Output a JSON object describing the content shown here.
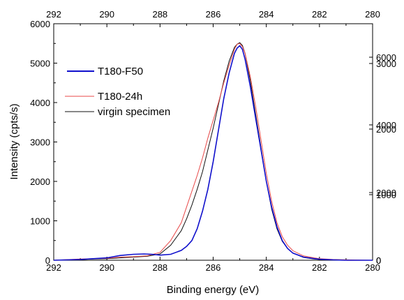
{
  "chart_data": {
    "type": "line",
    "xlabel": "Binding energy (eV)",
    "ylabel": "Intensity (cpts/s)",
    "xlim": [
      292,
      280
    ],
    "ylim": [
      0,
      6000
    ],
    "x_ticks": [
      292,
      290,
      288,
      286,
      284,
      282,
      280
    ],
    "y_ticks": [
      0,
      1000,
      2000,
      3000,
      4000,
      5000,
      6000
    ],
    "right_ticks_a": [
      0,
      1000,
      2000,
      3000
    ],
    "right_ticks_b": [
      0,
      2000,
      4000,
      6000
    ],
    "legend_position": "top-left",
    "grid": false,
    "series": [
      {
        "name": "T180-F50",
        "color": "#1010cc",
        "x": [
          292,
          291,
          290,
          289.5,
          289,
          288.6,
          288.3,
          288,
          287.6,
          287.2,
          287,
          286.8,
          286.6,
          286.4,
          286.2,
          286,
          285.8,
          285.6,
          285.4,
          285.2,
          285.1,
          285,
          284.9,
          284.8,
          284.6,
          284.4,
          284.2,
          284,
          283.8,
          283.6,
          283.4,
          283.2,
          283,
          282.6,
          282.2,
          282,
          281.5,
          281,
          280
        ],
        "y": [
          0,
          20,
          60,
          120,
          150,
          160,
          150,
          130,
          150,
          250,
          350,
          500,
          800,
          1250,
          1800,
          2500,
          3300,
          4100,
          4750,
          5250,
          5380,
          5440,
          5350,
          5100,
          4400,
          3600,
          2800,
          2000,
          1350,
          850,
          500,
          300,
          180,
          80,
          40,
          25,
          10,
          0,
          0
        ]
      },
      {
        "name": "T180-24h",
        "color": "#e84848",
        "x": [
          292,
          291,
          290,
          289.5,
          289,
          288.5,
          288,
          287.6,
          287.2,
          287,
          286.8,
          286.6,
          286.4,
          286.2,
          286,
          285.8,
          285.6,
          285.4,
          285.2,
          285.1,
          285,
          284.9,
          284.8,
          284.6,
          284.4,
          284.2,
          284,
          283.8,
          283.6,
          283.4,
          283.2,
          283,
          282.6,
          282.2,
          282,
          281.5,
          281,
          280
        ],
        "y": [
          0,
          30,
          50,
          80,
          90,
          110,
          200,
          500,
          950,
          1350,
          1750,
          2150,
          2600,
          3100,
          3550,
          4000,
          4500,
          4950,
          5350,
          5480,
          5500,
          5420,
          5250,
          4650,
          3900,
          3050,
          2200,
          1500,
          950,
          600,
          380,
          240,
          110,
          60,
          40,
          20,
          10,
          0
        ]
      },
      {
        "name": "virgin specimen",
        "color": "#111111",
        "x": [
          292,
          291,
          290,
          289.5,
          289,
          288.5,
          288,
          287.6,
          287.2,
          287,
          286.8,
          286.6,
          286.4,
          286.2,
          286,
          285.8,
          285.6,
          285.4,
          285.2,
          285.1,
          285,
          284.9,
          284.8,
          284.6,
          284.4,
          284.2,
          284,
          283.8,
          283.6,
          283.4,
          283.2,
          283,
          282.6,
          282.2,
          282,
          281.5,
          281,
          280
        ],
        "y": [
          0,
          20,
          40,
          60,
          80,
          100,
          160,
          380,
          750,
          1050,
          1400,
          1800,
          2250,
          2800,
          3350,
          3950,
          4550,
          5050,
          5400,
          5480,
          5520,
          5450,
          5250,
          4550,
          3700,
          2850,
          2000,
          1300,
          800,
          480,
          300,
          180,
          70,
          30,
          20,
          10,
          0,
          0
        ]
      }
    ]
  }
}
